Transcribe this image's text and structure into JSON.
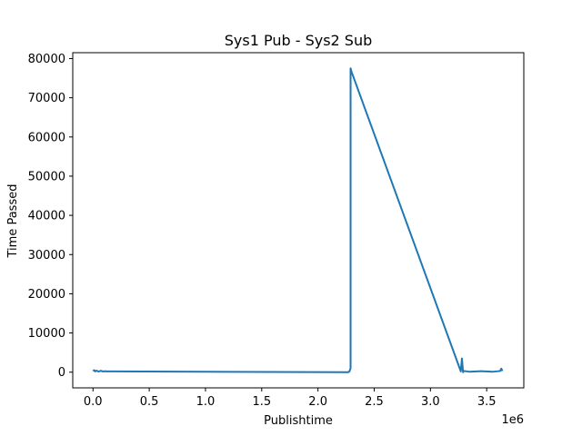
{
  "chart_data": {
    "type": "line",
    "title": "Sys1 Pub - Sys2 Sub",
    "xlabel": "Publishtime",
    "ylabel": "Time Passed",
    "x_offset_label": "1e6",
    "xlim": [
      -0.18,
      3.83
    ],
    "ylim": [
      -4000,
      81500
    ],
    "x_ticks": [
      0.0,
      0.5,
      1.0,
      1.5,
      2.0,
      2.5,
      3.0,
      3.5
    ],
    "x_tick_labels": [
      "0.0",
      "0.5",
      "1.0",
      "1.5",
      "2.0",
      "2.5",
      "3.0",
      "3.5"
    ],
    "y_ticks": [
      0,
      10000,
      20000,
      30000,
      40000,
      50000,
      60000,
      70000,
      80000
    ],
    "y_tick_labels": [
      "0",
      "10000",
      "20000",
      "30000",
      "40000",
      "50000",
      "60000",
      "70000",
      "80000"
    ],
    "grid": false,
    "color": "#1f77b4",
    "series": [
      {
        "x": [
          0.0,
          0.01,
          0.02,
          0.03,
          0.05,
          0.07,
          0.09,
          0.11,
          0.12,
          2.27,
          2.28,
          2.29,
          2.29,
          2.3,
          3.27,
          3.28,
          3.29,
          3.3,
          3.35,
          3.45,
          3.55,
          3.62,
          3.63,
          3.64
        ],
        "y": [
          300,
          500,
          200,
          400,
          150,
          350,
          180,
          250,
          200,
          0,
          200,
          1000,
          77500,
          76500,
          200,
          3500,
          0,
          300,
          100,
          250,
          100,
          300,
          900,
          300
        ]
      }
    ]
  }
}
